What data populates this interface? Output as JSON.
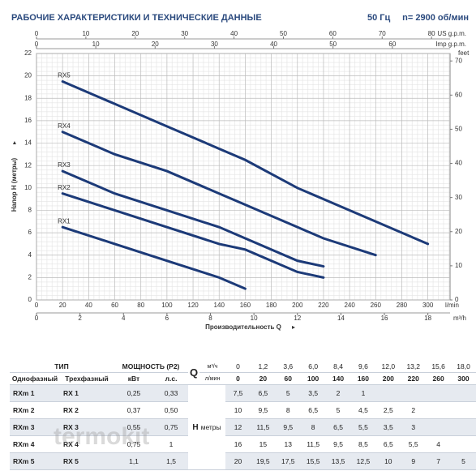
{
  "header": {
    "title": "РАБОЧИЕ ХАРАКТЕРИСТИКИ И ТЕХНИЧЕСКИЕ ДАННЫЕ",
    "frequency": "50 Гц",
    "speed": "n= 2900 об/мин"
  },
  "chart_data": {
    "type": "line",
    "x_label": "Производительность Q",
    "y_label": "Напор H (метры)",
    "x_unit": "l/min",
    "xlim": [
      0,
      317
    ],
    "xticks": [
      0,
      20,
      40,
      60,
      80,
      100,
      120,
      140,
      160,
      180,
      200,
      220,
      240,
      260,
      280,
      300
    ],
    "ylim": [
      0,
      22
    ],
    "yticks": [
      0,
      2,
      4,
      6,
      8,
      10,
      12,
      14,
      16,
      18,
      20,
      22
    ],
    "x2_unit": "m³/h",
    "x2lim": [
      0,
      19.02
    ],
    "x2ticks": [
      0,
      2,
      4,
      6,
      8,
      10,
      12,
      14,
      16,
      18
    ],
    "x3_unit": "US g.p.m.",
    "x3lim": [
      0,
      83.75
    ],
    "x3ticks": [
      0,
      10,
      20,
      30,
      40,
      50,
      60,
      70,
      80
    ],
    "x4_unit": "Imp g.p.m.",
    "x4lim": [
      0,
      69.73
    ],
    "x4ticks": [
      0,
      10,
      20,
      30,
      40,
      50,
      60
    ],
    "y2_unit": "feet",
    "y2lim": [
      0,
      72.18
    ],
    "y2ticks": [
      0,
      10,
      20,
      30,
      40,
      50,
      60,
      70
    ],
    "grid": true,
    "series": [
      {
        "name": "RX1",
        "color": "#1c3a78",
        "x": [
          20,
          60,
          100,
          140,
          160
        ],
        "values": [
          6.5,
          5,
          3.5,
          2,
          1
        ]
      },
      {
        "name": "RX2",
        "color": "#1c3a78",
        "x": [
          20,
          60,
          100,
          140,
          160,
          200,
          220
        ],
        "values": [
          9.5,
          8,
          6.5,
          5,
          4.5,
          2.5,
          2
        ]
      },
      {
        "name": "RX3",
        "color": "#1c3a78",
        "x": [
          20,
          60,
          100,
          140,
          160,
          200,
          220
        ],
        "values": [
          11.5,
          9.5,
          8,
          6.5,
          5.5,
          3.5,
          3
        ]
      },
      {
        "name": "RX4",
        "color": "#1c3a78",
        "x": [
          20,
          60,
          100,
          140,
          160,
          200,
          220,
          260
        ],
        "values": [
          15,
          13,
          11.5,
          9.5,
          8.5,
          6.5,
          5.5,
          4
        ]
      },
      {
        "name": "RX5",
        "color": "#1c3a78",
        "x": [
          20,
          60,
          100,
          140,
          160,
          200,
          220,
          260,
          300
        ],
        "values": [
          19.5,
          17.5,
          15.5,
          13.5,
          12.5,
          10,
          9,
          7,
          5
        ]
      }
    ]
  },
  "table": {
    "type": "ТИП",
    "power": "МОЩНОСТЬ (P2)",
    "q": "Q",
    "q_unit1": "м³/ч",
    "q_unit2": "л/мин",
    "single": "Однофазный",
    "three": "Трехфазный",
    "kw": "кВт",
    "hp": "л.с.",
    "h": "H",
    "h_unit": "метры",
    "flow_m3h": [
      "0",
      "1,2",
      "3,6",
      "6,0",
      "8,4",
      "9,6",
      "12,0",
      "13,2",
      "15,6",
      "18,0"
    ],
    "flow_lmin": [
      "0",
      "20",
      "60",
      "100",
      "140",
      "160",
      "200",
      "220",
      "260",
      "300"
    ],
    "rows": [
      {
        "single": "RXm 1",
        "three": "RX 1",
        "kw": "0,25",
        "hp": "0,33",
        "h": [
          "7,5",
          "6,5",
          "5",
          "3,5",
          "2",
          "1"
        ]
      },
      {
        "single": "RXm 2",
        "three": "RX 2",
        "kw": "0,37",
        "hp": "0,50",
        "h": [
          "10",
          "9,5",
          "8",
          "6,5",
          "5",
          "4,5",
          "2,5",
          "2"
        ]
      },
      {
        "single": "RXm 3",
        "three": "RX 3",
        "kw": "0,55",
        "hp": "0,75",
        "h": [
          "12",
          "11,5",
          "9,5",
          "8",
          "6,5",
          "5,5",
          "3,5",
          "3"
        ]
      },
      {
        "single": "RXm 4",
        "three": "RX 4",
        "kw": "0,75",
        "hp": "1",
        "h": [
          "16",
          "15",
          "13",
          "11,5",
          "9,5",
          "8,5",
          "6,5",
          "5,5",
          "4"
        ]
      },
      {
        "single": "RXm 5",
        "three": "RX 5",
        "kw": "1,1",
        "hp": "1,5",
        "h": [
          "20",
          "19,5",
          "17,5",
          "15,5",
          "13,5",
          "12,5",
          "10",
          "9",
          "7",
          "5"
        ]
      }
    ]
  },
  "watermark": "termokit"
}
